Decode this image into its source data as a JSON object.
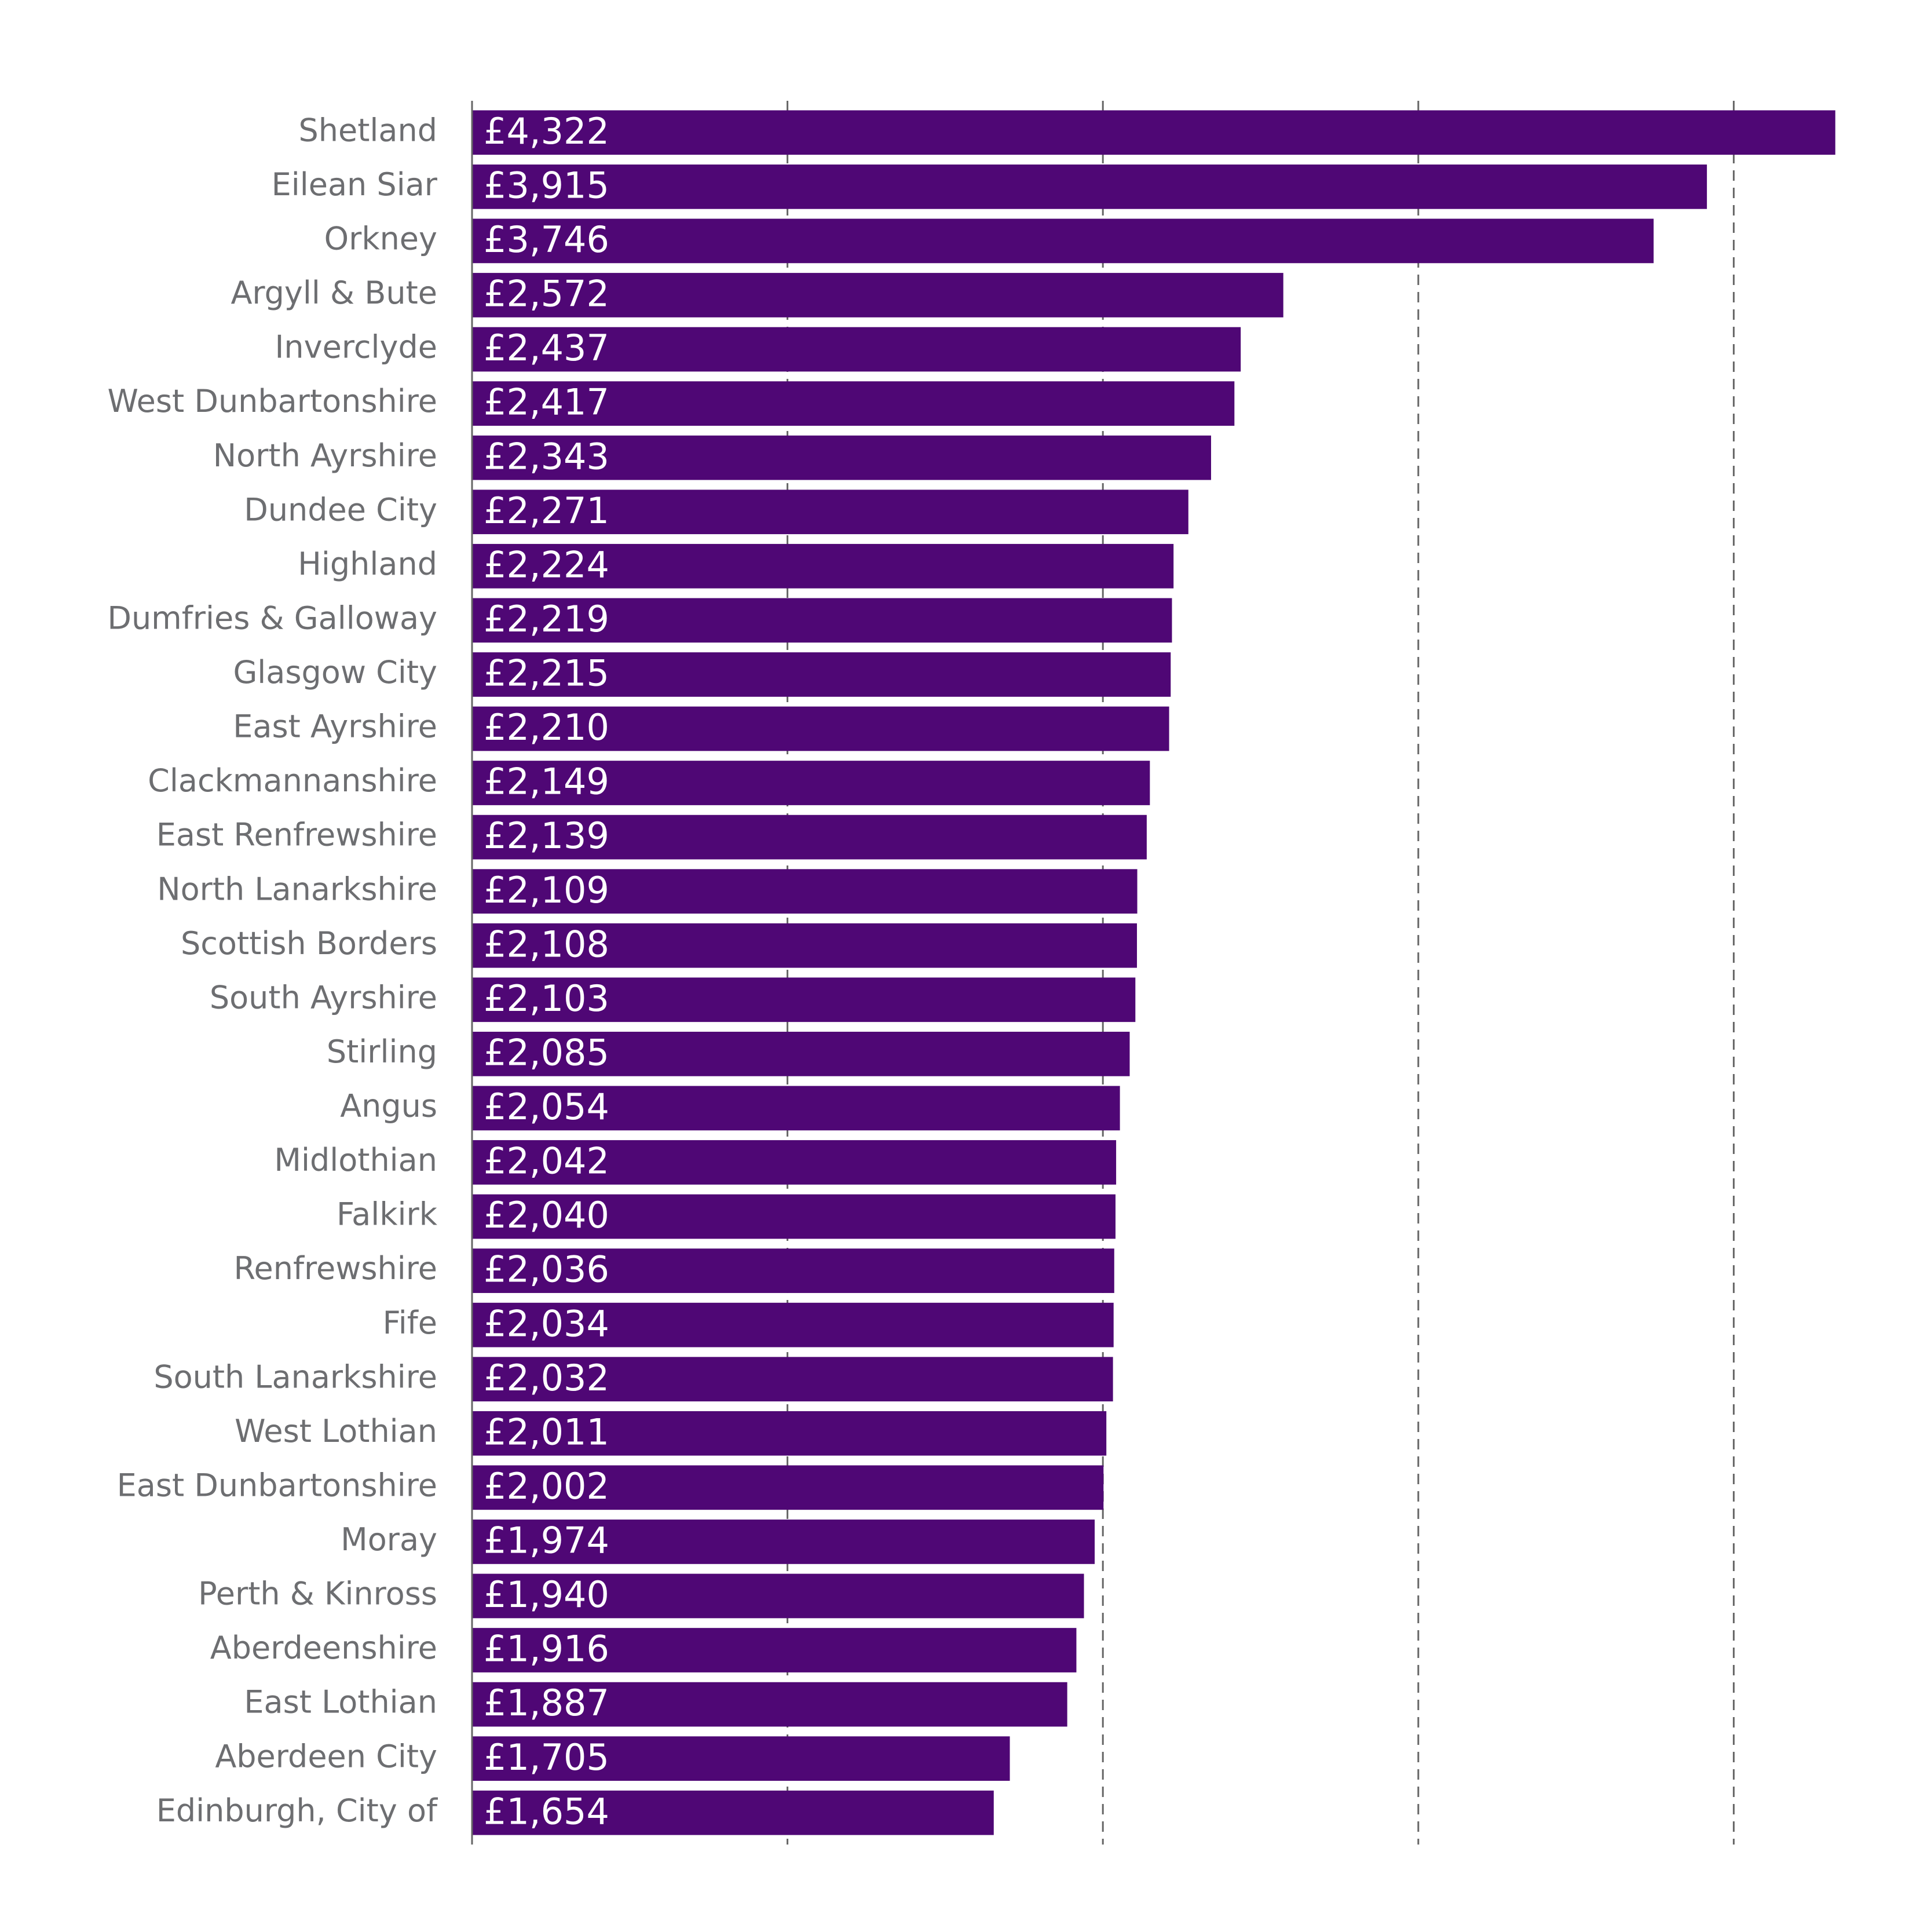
{
  "chart_data": {
    "type": "bar",
    "orientation": "horizontal",
    "color": "#4f0775",
    "categories": [
      "Shetland",
      "Eilean Siar",
      "Orkney",
      "Argyll & Bute",
      "Inverclyde",
      "West Dunbartonshire",
      "North Ayrshire",
      "Dundee City",
      "Highland",
      "Dumfries & Galloway",
      "Glasgow City",
      "East Ayrshire",
      "Clackmannanshire",
      "East Renfrewshire",
      "North Lanarkshire",
      "Scottish Borders",
      "South Ayrshire",
      "Stirling",
      "Angus",
      "Midlothian",
      "Falkirk",
      "Renfrewshire",
      "Fife",
      "South Lanarkshire",
      "West Lothian",
      "East Dunbartonshire",
      "Moray",
      "Perth & Kinross",
      "Aberdeenshire",
      "East Lothian",
      "Aberdeen City",
      "Edinburgh, City of"
    ],
    "values": [
      4322,
      3915,
      3746,
      2572,
      2437,
      2417,
      2343,
      2271,
      2224,
      2219,
      2215,
      2210,
      2149,
      2139,
      2109,
      2108,
      2103,
      2085,
      2054,
      2042,
      2040,
      2036,
      2034,
      2032,
      2011,
      2002,
      1974,
      1940,
      1916,
      1887,
      1705,
      1654
    ],
    "value_labels": [
      "£4,322",
      "£3,915",
      "£3,746",
      "£2,572",
      "£2,437",
      "£2,417",
      "£2,343",
      "£2,271",
      "£2,224",
      "£2,219",
      "£2,215",
      "£2,210",
      "£2,149",
      "£2,139",
      "£2,109",
      "£2,108",
      "£2,103",
      "£2,085",
      "£2,054",
      "£2,042",
      "£2,040",
      "£2,036",
      "£2,034",
      "£2,032",
      "£2,011",
      "£2,002",
      "£1,974",
      "£1,940",
      "£1,916",
      "£1,887",
      "£1,705",
      "£1,654"
    ],
    "xlim": [
      0,
      4400
    ],
    "xticks": [
      1000,
      2000,
      3000,
      4000
    ],
    "grid": true
  }
}
